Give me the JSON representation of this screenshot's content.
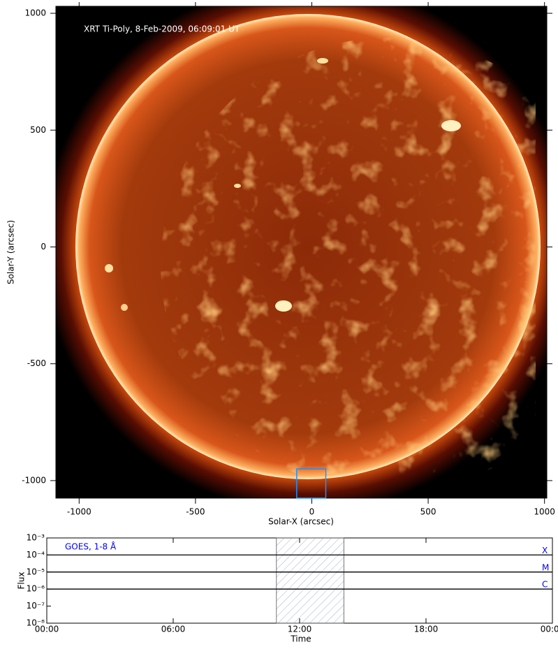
{
  "chart_data": [
    {
      "type": "image",
      "title": "XRT Ti-Poly, 8-Feb-2009, 06:09:01 UT",
      "x_label": "Solar-X (arcsec)",
      "y_label": "Solar-Y (arcsec)",
      "xlim": [
        -1100,
        1010
      ],
      "ylim": [
        -1075,
        1030
      ],
      "xticks": [
        -1000,
        -500,
        0,
        500,
        1000
      ],
      "yticks": [
        -1000,
        -500,
        0,
        500,
        1000
      ],
      "box": {
        "x": [
          -65,
          60
        ],
        "y": [
          -1075,
          -950
        ],
        "color": "#1e90ff"
      }
    },
    {
      "type": "line",
      "log_y": true,
      "x_label": "Time",
      "y_label": "Flux",
      "xlim": [
        0,
        24
      ],
      "xticks": [
        {
          "value": 0,
          "label": "00:00"
        },
        {
          "value": 6,
          "label": "06:00"
        },
        {
          "value": 12,
          "label": "12:00"
        },
        {
          "value": 18,
          "label": "18:00"
        },
        {
          "value": 24,
          "label": "00:00"
        }
      ],
      "ylim": [
        1e-08,
        0.001
      ],
      "yticks": [
        {
          "value": 1e-08,
          "label": "10⁻⁸"
        },
        {
          "value": 1e-07,
          "label": "10⁻⁷"
        },
        {
          "value": 1e-06,
          "label": "10⁻⁶"
        },
        {
          "value": 1e-05,
          "label": "10⁻⁵"
        },
        {
          "value": 0.0001,
          "label": "10⁻⁴"
        },
        {
          "value": 0.001,
          "label": "10⁻³"
        }
      ],
      "series": [
        {
          "name": "GOES, 1-8 Å",
          "color": "#0000ff",
          "x": [],
          "values": []
        }
      ],
      "flare_classes": [
        {
          "label": "X",
          "value": 0.0001
        },
        {
          "label": "M",
          "value": 1e-05
        },
        {
          "label": "C",
          "value": 1e-06
        }
      ],
      "shaded_span": [
        10.9,
        14.1
      ]
    }
  ]
}
